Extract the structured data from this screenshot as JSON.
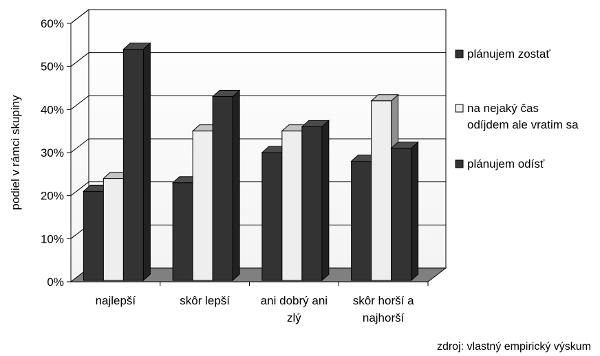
{
  "chart_data": {
    "type": "bar",
    "title": "",
    "xlabel": "",
    "ylabel": "podiel v rámci skupiny",
    "ylim": [
      0,
      60
    ],
    "ytick_step": 10,
    "ytick_suffix": "%",
    "categories": [
      [
        "najlepší"
      ],
      [
        "skôr lepší"
      ],
      [
        "ani dobrý ani",
        "zlý"
      ],
      [
        "skôr horší a",
        "najhorší"
      ]
    ],
    "series": [
      {
        "name": "plánujem zostať",
        "values": [
          21,
          23,
          30,
          28
        ],
        "color": "#333333",
        "legend_lines": [
          "plánujem zostať"
        ]
      },
      {
        "name": "na nejaký čas odíjdem ale vratim sa",
        "values": [
          24,
          35,
          35,
          42
        ],
        "color": "#eeeeee",
        "legend_lines": [
          "na nejaký čas",
          "odíjdem ale vratim sa"
        ]
      },
      {
        "name": "plánujem odísť",
        "values": [
          54,
          43,
          36,
          31
        ],
        "color": "#333333",
        "legend_lines": [
          "plánujem odísť"
        ]
      }
    ],
    "grid": true,
    "legend_position": "right",
    "three_d": true,
    "source_note": "zdroj: vlastný empirický výskum"
  }
}
